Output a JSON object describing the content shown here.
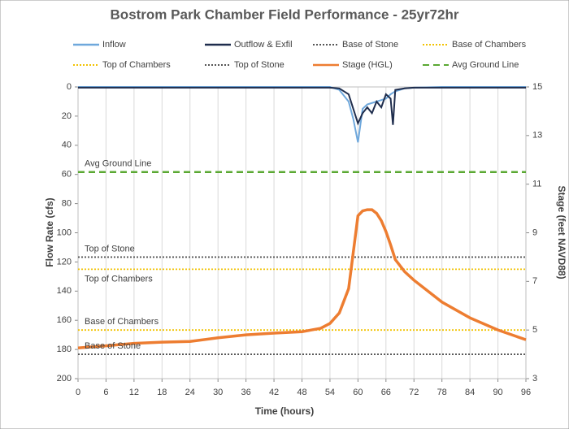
{
  "chart_data": {
    "type": "line",
    "title": "Bostrom Park Chamber Field Performance - 25yr72hr",
    "x_label": "Time (hours)",
    "y_label": "Flow Rate (cfs)",
    "y2_label": "Stage (feet NAVD88)",
    "xlim": [
      0,
      96
    ],
    "xticks": [
      0,
      6,
      12,
      18,
      24,
      30,
      36,
      42,
      48,
      54,
      60,
      66,
      72,
      78,
      84,
      90,
      96
    ],
    "ylim": [
      0,
      200
    ],
    "y_inverted": true,
    "yticks": [
      0,
      20,
      40,
      60,
      80,
      100,
      120,
      140,
      160,
      180,
      200
    ],
    "y2lim": [
      3,
      15
    ],
    "y2ticks": [
      3,
      5,
      7,
      9,
      11,
      13,
      15
    ],
    "grid": true,
    "series": [
      {
        "name": "Inflow",
        "color": "#6fa8dc",
        "style": "solid",
        "axis": "y",
        "x": [
          0,
          6,
          12,
          18,
          24,
          30,
          36,
          42,
          48,
          52,
          54,
          56,
          58,
          59,
          60,
          61,
          62,
          63,
          64,
          65,
          66,
          67,
          67.5,
          68,
          70,
          72,
          78,
          84,
          90,
          96
        ],
        "values": [
          0,
          0,
          0,
          0,
          0,
          0,
          0,
          0,
          0,
          0,
          0,
          2,
          10,
          22,
          38,
          15,
          12,
          11,
          10,
          9,
          8,
          5,
          4,
          3,
          1,
          0.5,
          0,
          0,
          0,
          0
        ]
      },
      {
        "name": "Outflow & Exfil",
        "color": "#1f2d4d",
        "style": "solid",
        "axis": "y",
        "x": [
          0,
          6,
          12,
          18,
          24,
          30,
          36,
          42,
          48,
          52,
          54,
          56,
          58,
          59,
          60,
          61,
          62,
          63,
          64,
          65,
          66,
          67,
          67.5,
          68,
          70,
          72,
          78,
          84,
          90,
          96
        ],
        "values": [
          0.5,
          0.5,
          0.5,
          0.5,
          0.5,
          0.5,
          0.5,
          0.5,
          0.5,
          0.5,
          0.5,
          1,
          5,
          15,
          25,
          18,
          14,
          18,
          10,
          14,
          5,
          8,
          26,
          2,
          1,
          0.5,
          0.5,
          0.5,
          0.5,
          0.5
        ]
      },
      {
        "name": "Base of Stone",
        "color": "#555555",
        "style": "dotted",
        "axis": "y2",
        "x": [
          0,
          96
        ],
        "values": [
          4,
          4
        ]
      },
      {
        "name": "Base of Chambers",
        "color": "#f2c200",
        "style": "dotted",
        "axis": "y2",
        "x": [
          0,
          96
        ],
        "values": [
          5,
          5
        ]
      },
      {
        "name": "Top of Chambers",
        "color": "#f2c200",
        "style": "dotted",
        "axis": "y2",
        "x": [
          0,
          96
        ],
        "values": [
          7.5,
          7.5
        ]
      },
      {
        "name": "Top of Stone",
        "color": "#555555",
        "style": "dotted",
        "axis": "y2",
        "x": [
          0,
          96
        ],
        "values": [
          8,
          8
        ]
      },
      {
        "name": "Stage (HGL)",
        "color": "#ed7d31",
        "style": "solid",
        "axis": "y2",
        "x": [
          0,
          6,
          12,
          18,
          24,
          30,
          36,
          42,
          48,
          52,
          54,
          56,
          58,
          59,
          60,
          61,
          62,
          63,
          64,
          65,
          66,
          67,
          67.5,
          68,
          70,
          72,
          78,
          84,
          90,
          96
        ],
        "values": [
          4.26,
          4.35,
          4.45,
          4.5,
          4.53,
          4.68,
          4.8,
          4.87,
          4.93,
          5.07,
          5.27,
          5.7,
          6.7,
          8.2,
          9.7,
          9.9,
          9.95,
          9.95,
          9.8,
          9.5,
          9.05,
          8.5,
          8.2,
          7.9,
          7.4,
          7.05,
          6.15,
          5.5,
          5.0,
          4.6
        ]
      },
      {
        "name": "Avg Ground Line",
        "color": "#5aa832",
        "style": "dashed",
        "axis": "y2",
        "x": [
          0,
          96
        ],
        "values": [
          11.5,
          11.5
        ]
      }
    ]
  }
}
